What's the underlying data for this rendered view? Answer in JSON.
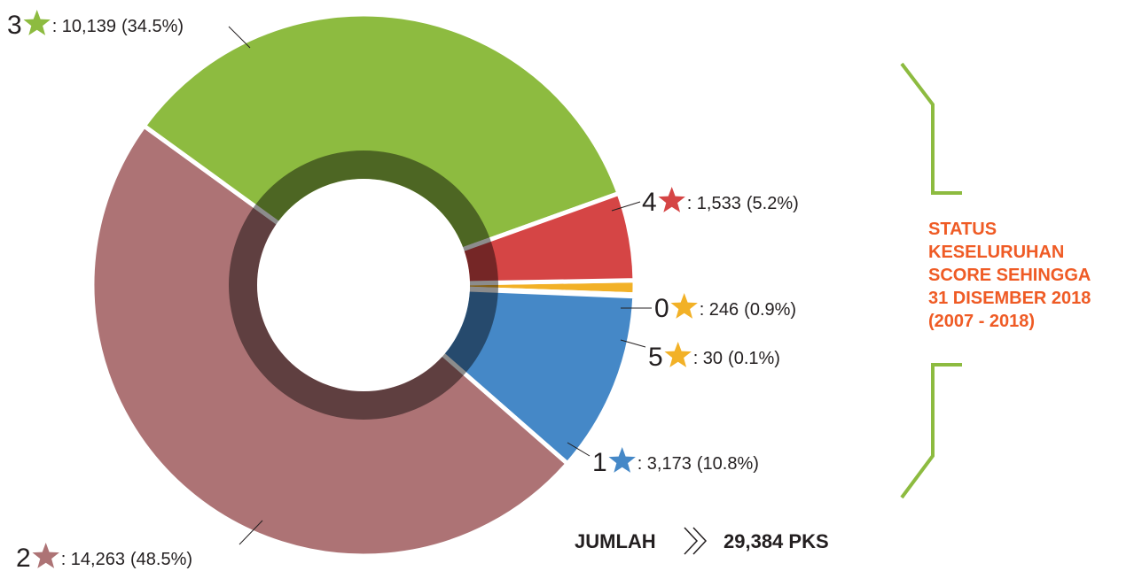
{
  "chart_data": {
    "type": "pie",
    "categories": [
      "0",
      "5",
      "1",
      "2",
      "3",
      "4"
    ],
    "values": [
      246,
      30,
      3173,
      14263,
      10139,
      1533
    ],
    "value_labels": [
      ": 246",
      ": 30",
      ": 3,173",
      ": 14,263",
      ": 10,139",
      ": 1,533"
    ],
    "percent_labels": [
      "(0.9%)",
      "(0.1%)",
      "(10.8%)",
      "(48.5%)",
      "(34.5%)",
      "(5.2%)"
    ],
    "colors": [
      "#f2b127",
      "#939598",
      "#4588c7",
      "#ad7375",
      "#8dbb40",
      "#d54545"
    ],
    "star_colors": [
      "#f2b127",
      "#f2b127",
      "#4588c7",
      "#ad7375",
      "#8dbb40",
      "#d54545"
    ],
    "total_heading": "JUMLAH",
    "total_label": "29,384 PKS",
    "side_note": [
      "STATUS",
      "KESELURUHAN",
      "SCORE SEHINGGA",
      "31 DISEMBER 2018",
      "(2007 - 2018)"
    ]
  }
}
